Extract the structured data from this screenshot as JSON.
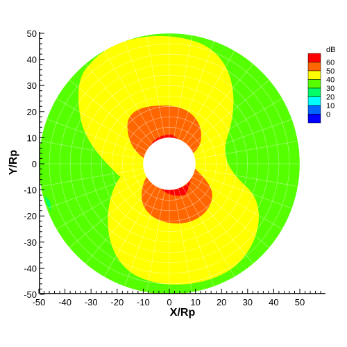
{
  "chart_data": {
    "type": "heatmap",
    "subtype": "polar-contour",
    "title": "",
    "xlabel": "X/Rp",
    "ylabel": "Y/Rp",
    "xlim": [
      -50,
      60
    ],
    "ylim": [
      -50,
      50
    ],
    "xticks": [
      -50,
      -40,
      -30,
      -20,
      -10,
      0,
      10,
      20,
      30,
      40,
      50
    ],
    "yticks": [
      -50,
      -40,
      -30,
      -20,
      -10,
      0,
      10,
      20,
      30,
      40,
      50
    ],
    "domain": {
      "inner_radius": 10,
      "outer_radius": 50,
      "center": [
        0,
        0
      ]
    },
    "legend": {
      "title": "dB",
      "position": "top-right",
      "levels": [
        {
          "label": "60",
          "color": "#ff0000"
        },
        {
          "label": "50",
          "color": "#ff6600"
        },
        {
          "label": "40",
          "color": "#ffff00"
        },
        {
          "label": "30",
          "color": "#55ff00"
        },
        {
          "label": "20",
          "color": "#00ff66"
        },
        {
          "label": "10",
          "color": "#00ffff"
        },
        {
          "label": "0",
          "color": "#0066ff"
        },
        {
          "label": "",
          "color": "#0000ff"
        }
      ]
    },
    "regions": [
      {
        "name": "far-field",
        "level": "30-40 dB",
        "color": "#55ff00"
      },
      {
        "name": "figure-eight lobes",
        "level": "40-50 dB",
        "color": "#ffff00"
      },
      {
        "name": "inner lobes",
        "level": "50-60 dB",
        "color": "#ff6600"
      },
      {
        "name": "near-cylinder patches",
        "level": ">60 dB",
        "color": "#ff0000"
      }
    ],
    "grid": true
  }
}
